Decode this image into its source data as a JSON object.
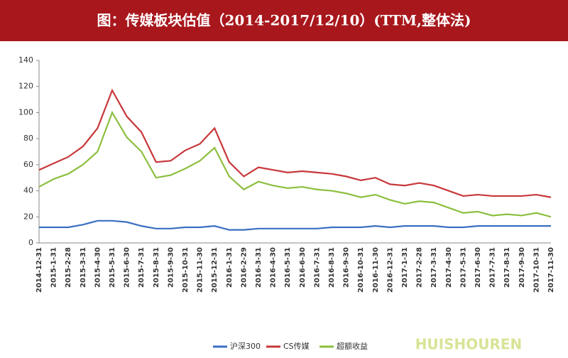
{
  "chart_data": {
    "type": "line",
    "title": "图：传媒板块估值（2014-2017/12/10）(TTM,整体法)",
    "watermark": "HUISHOUREN",
    "categories": [
      "2014-12-31",
      "2015-1-31",
      "2015-2-28",
      "2015-3-31",
      "2015-4-30",
      "2015-5-31",
      "2015-6-30",
      "2015-7-31",
      "2015-8-31",
      "2015-9-30",
      "2015-10-31",
      "2015-11-30",
      "2015-12-31",
      "2016-1-31",
      "2016-2-29",
      "2016-3-31",
      "2016-4-30",
      "2016-5-31",
      "2016-6-30",
      "2016-7-31",
      "2016-8-31",
      "2016-9-30",
      "2016-10-31",
      "2016-11-30",
      "2016-12-31",
      "2017-1-31",
      "2017-2-28",
      "2017-3-31",
      "2017-4-30",
      "2017-5-31",
      "2017-6-30",
      "2017-7-31",
      "2017-8-31",
      "2017-9-30",
      "2017-10-31",
      "2017-11-30"
    ],
    "series": [
      {
        "name": "沪深300",
        "color": "#3a6fc4",
        "values": [
          12,
          12,
          12,
          14,
          17,
          17,
          16,
          13,
          11,
          11,
          12,
          12,
          13,
          10,
          10,
          11,
          11,
          11,
          11,
          11,
          12,
          12,
          12,
          13,
          12,
          13,
          13,
          13,
          12,
          12,
          13,
          13,
          13,
          13,
          13,
          13
        ]
      },
      {
        "name": "CS传媒",
        "color": "#c8373a",
        "values": [
          56,
          61,
          66,
          74,
          88,
          117,
          97,
          85,
          62,
          63,
          71,
          76,
          88,
          62,
          51,
          58,
          56,
          54,
          55,
          54,
          53,
          51,
          48,
          50,
          45,
          44,
          46,
          44,
          40,
          36,
          37,
          36,
          36,
          36,
          37,
          35
        ]
      },
      {
        "name": "超额收益",
        "color": "#8cbf3f",
        "values": [
          43,
          49,
          53,
          60,
          70,
          100,
          81,
          70,
          50,
          52,
          57,
          63,
          73,
          51,
          41,
          47,
          44,
          42,
          43,
          41,
          40,
          38,
          35,
          37,
          33,
          30,
          32,
          31,
          27,
          23,
          24,
          21,
          22,
          21,
          23,
          20
        ]
      }
    ],
    "ylim": [
      0,
      140
    ],
    "yticks": [
      0,
      20,
      40,
      60,
      80,
      100,
      120,
      140
    ],
    "grid": false
  }
}
